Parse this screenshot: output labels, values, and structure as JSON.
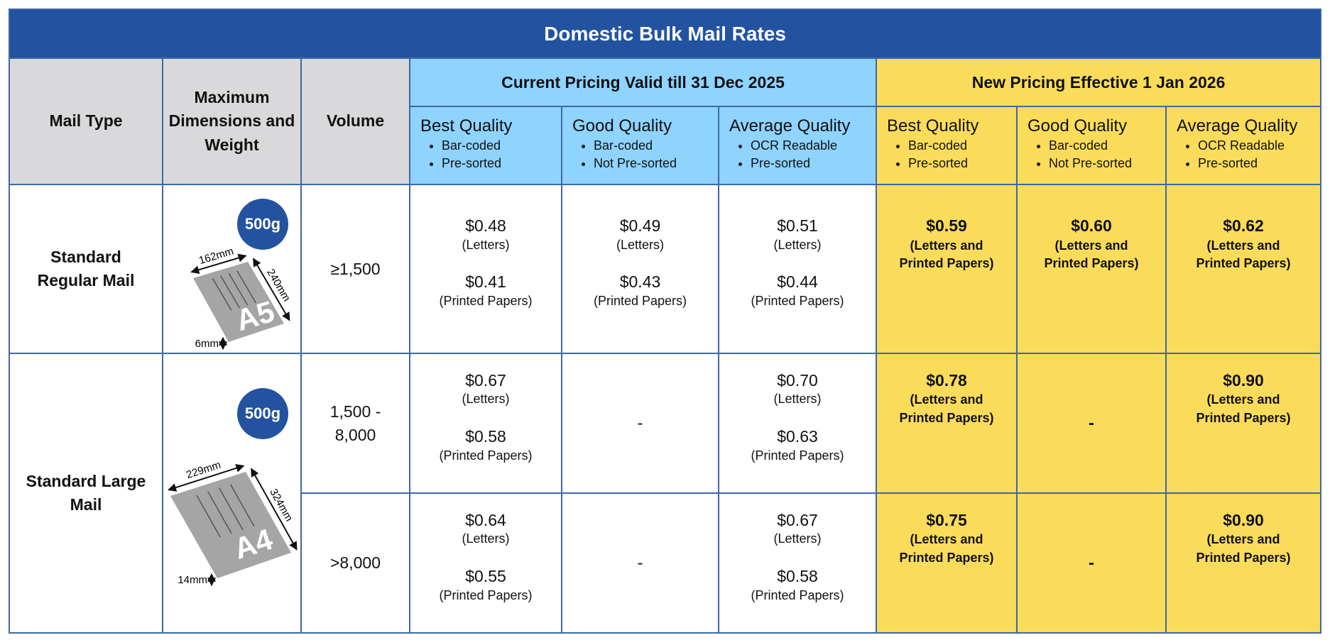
{
  "title": "Domestic Bulk Mail Rates",
  "header": {
    "fixed_columns": [
      "Mail Type",
      "Maximum Dimensions and Weight",
      "Volume"
    ],
    "groups": [
      {
        "title": "Current Pricing Valid till 31 Dec 2025",
        "columns": [
          {
            "name": "Best Quality",
            "features": [
              "Bar-coded",
              "Pre-sorted"
            ]
          },
          {
            "name": "Good Quality",
            "features": [
              "Bar-coded",
              "Not Pre-sorted"
            ]
          },
          {
            "name": "Average Quality",
            "features": [
              "OCR Readable",
              "Pre-sorted"
            ]
          }
        ]
      },
      {
        "title": "New Pricing Effective 1 Jan 2026",
        "columns": [
          {
            "name": "Best Quality",
            "features": [
              "Bar-coded",
              "Pre-sorted"
            ]
          },
          {
            "name": "Good Quality",
            "features": [
              "Bar-coded",
              "Not Pre-sorted"
            ]
          },
          {
            "name": "Average Quality",
            "features": [
              "OCR Readable",
              "Pre-sorted"
            ]
          }
        ]
      }
    ]
  },
  "rows": [
    {
      "mail_type": "Standard Regular Mail",
      "dimensions": {
        "weight": "500g",
        "width": "162mm",
        "length": "240mm",
        "thickness": "6mm",
        "size": "A5"
      },
      "tiers": [
        {
          "volume": "≥1,500",
          "prices": [
            [
              "$0.48",
              "(Letters)",
              "$0.41",
              "(Printed Papers)"
            ],
            [
              "$0.49",
              "(Letters)",
              "$0.43",
              "(Printed Papers)"
            ],
            [
              "$0.51",
              "(Letters)",
              "$0.44",
              "(Printed Papers)"
            ],
            [
              "$0.59",
              "(Letters and Printed Papers)"
            ],
            [
              "$0.60",
              "(Letters and Printed Papers)"
            ],
            [
              "$0.62",
              "(Letters and Printed Papers)"
            ]
          ]
        }
      ]
    },
    {
      "mail_type": "Standard Large Mail",
      "dimensions": {
        "weight": "500g",
        "width": "229mm",
        "length": "324mm",
        "thickness": "14mm",
        "size": "A4"
      },
      "tiers": [
        {
          "volume": "1,500 - 8,000",
          "prices": [
            [
              "$0.67",
              "(Letters)",
              "$0.58",
              "(Printed Papers)"
            ],
            [
              "-"
            ],
            [
              "$0.70",
              "(Letters)",
              "$0.63",
              "(Printed Papers)"
            ],
            [
              "$0.78",
              "(Letters and Printed Papers)"
            ],
            [
              "-"
            ],
            [
              "$0.90",
              "(Letters and Printed Papers)"
            ]
          ]
        },
        {
          "volume": ">8,000",
          "prices": [
            [
              "$0.64",
              "(Letters)",
              "$0.55",
              "(Printed Papers)"
            ],
            [
              "-"
            ],
            [
              "$0.67",
              "(Letters)",
              "$0.58",
              "(Printed Papers)"
            ],
            [
              "$0.75",
              "(Letters and Printed Papers)"
            ],
            [
              "-"
            ],
            [
              "$0.90",
              "(Letters and Printed Papers)"
            ]
          ]
        }
      ]
    }
  ]
}
